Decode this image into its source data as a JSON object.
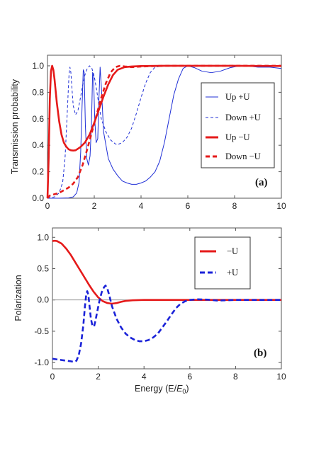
{
  "chart_data": [
    {
      "type": "line",
      "panel_label": "(a)",
      "ylabel": "Transmission probability",
      "xlabel": "",
      "xlim": [
        0,
        10
      ],
      "ylim": [
        0,
        1.08
      ],
      "xticks": [
        0,
        2,
        4,
        6,
        8,
        10
      ],
      "yticks": [
        0.0,
        0.2,
        0.4,
        0.6,
        0.8,
        1.0
      ],
      "ytick_labels": [
        "0.0",
        "0.2",
        "0.4",
        "0.6",
        "0.8",
        "1.0"
      ],
      "grid": false,
      "legend_position": "right",
      "series": [
        {
          "name": "Up +U",
          "color": "#1f2fd6",
          "style": "solid",
          "weight": "thin",
          "points": [
            [
              0,
              0
            ],
            [
              0.5,
              0
            ],
            [
              0.9,
              0.002
            ],
            [
              1.1,
              0.01
            ],
            [
              1.25,
              0.04
            ],
            [
              1.35,
              0.12
            ],
            [
              1.42,
              0.35
            ],
            [
              1.48,
              0.7
            ],
            [
              1.53,
              0.97
            ],
            [
              1.57,
              0.95
            ],
            [
              1.62,
              0.55
            ],
            [
              1.68,
              0.3
            ],
            [
              1.75,
              0.25
            ],
            [
              1.82,
              0.32
            ],
            [
              1.88,
              0.55
            ],
            [
              1.93,
              0.95
            ],
            [
              1.97,
              0.92
            ],
            [
              2.02,
              0.6
            ],
            [
              2.08,
              0.42
            ],
            [
              2.15,
              0.45
            ],
            [
              2.2,
              0.75
            ],
            [
              2.25,
              0.99
            ],
            [
              2.3,
              0.85
            ],
            [
              2.4,
              0.5
            ],
            [
              2.6,
              0.3
            ],
            [
              2.8,
              0.22
            ],
            [
              3.0,
              0.17
            ],
            [
              3.2,
              0.13
            ],
            [
              3.4,
              0.115
            ],
            [
              3.6,
              0.105
            ],
            [
              3.8,
              0.105
            ],
            [
              4.0,
              0.115
            ],
            [
              4.2,
              0.13
            ],
            [
              4.4,
              0.16
            ],
            [
              4.6,
              0.2
            ],
            [
              4.8,
              0.28
            ],
            [
              5.0,
              0.42
            ],
            [
              5.2,
              0.6
            ],
            [
              5.4,
              0.78
            ],
            [
              5.6,
              0.9
            ],
            [
              5.8,
              0.98
            ],
            [
              6.0,
              1.0
            ],
            [
              6.3,
              0.985
            ],
            [
              6.6,
              0.96
            ],
            [
              7.0,
              0.948
            ],
            [
              7.4,
              0.96
            ],
            [
              7.8,
              0.985
            ],
            [
              8.2,
              1.0
            ],
            [
              8.6,
              0.998
            ],
            [
              9.0,
              0.99
            ],
            [
              9.5,
              0.99
            ],
            [
              10,
              0.98
            ]
          ]
        },
        {
          "name": "Down +U",
          "color": "#1f2fd6",
          "style": "dashed",
          "weight": "thin",
          "points": [
            [
              0,
              0
            ],
            [
              0.3,
              0.01
            ],
            [
              0.5,
              0.04
            ],
            [
              0.65,
              0.12
            ],
            [
              0.75,
              0.3
            ],
            [
              0.82,
              0.55
            ],
            [
              0.88,
              0.78
            ],
            [
              0.92,
              0.93
            ],
            [
              0.96,
              0.99
            ],
            [
              1.0,
              0.95
            ],
            [
              1.05,
              0.82
            ],
            [
              1.1,
              0.7
            ],
            [
              1.2,
              0.63
            ],
            [
              1.3,
              0.66
            ],
            [
              1.4,
              0.75
            ],
            [
              1.5,
              0.85
            ],
            [
              1.6,
              0.93
            ],
            [
              1.7,
              0.98
            ],
            [
              1.8,
              1.0
            ],
            [
              1.9,
              0.98
            ],
            [
              2.0,
              0.92
            ],
            [
              2.1,
              0.82
            ],
            [
              2.2,
              0.7
            ],
            [
              2.3,
              0.6
            ],
            [
              2.5,
              0.5
            ],
            [
              2.7,
              0.44
            ],
            [
              2.9,
              0.41
            ],
            [
              3.0,
              0.405
            ],
            [
              3.2,
              0.42
            ],
            [
              3.4,
              0.46
            ],
            [
              3.6,
              0.53
            ],
            [
              3.8,
              0.64
            ],
            [
              4.0,
              0.76
            ],
            [
              4.2,
              0.87
            ],
            [
              4.4,
              0.95
            ],
            [
              4.6,
              0.99
            ],
            [
              5.0,
              1.0
            ],
            [
              6.0,
              0.998
            ],
            [
              7.0,
              0.999
            ],
            [
              8.0,
              0.998
            ],
            [
              9.0,
              0.999
            ],
            [
              10,
              0.998
            ]
          ]
        },
        {
          "name": "Up −U",
          "color": "#e51a1a",
          "style": "solid",
          "weight": "thick",
          "points": [
            [
              0,
              0
            ],
            [
              0.05,
              0.3
            ],
            [
              0.1,
              0.75
            ],
            [
              0.15,
              0.96
            ],
            [
              0.2,
              1.0
            ],
            [
              0.25,
              0.97
            ],
            [
              0.3,
              0.9
            ],
            [
              0.4,
              0.72
            ],
            [
              0.5,
              0.58
            ],
            [
              0.6,
              0.48
            ],
            [
              0.7,
              0.42
            ],
            [
              0.8,
              0.39
            ],
            [
              0.9,
              0.37
            ],
            [
              1.0,
              0.362
            ],
            [
              1.1,
              0.36
            ],
            [
              1.2,
              0.362
            ],
            [
              1.4,
              0.385
            ],
            [
              1.6,
              0.42
            ],
            [
              1.8,
              0.48
            ],
            [
              2.0,
              0.57
            ],
            [
              2.2,
              0.67
            ],
            [
              2.4,
              0.77
            ],
            [
              2.6,
              0.86
            ],
            [
              2.8,
              0.93
            ],
            [
              3.0,
              0.97
            ],
            [
              3.3,
              0.99
            ],
            [
              3.6,
              0.995
            ],
            [
              4.0,
              0.998
            ],
            [
              5.0,
              1.0
            ],
            [
              6.0,
              1.0
            ],
            [
              7.0,
              1.0
            ],
            [
              8.0,
              1.0
            ],
            [
              9.0,
              0.999
            ],
            [
              10,
              0.998
            ]
          ]
        },
        {
          "name": "Down −U",
          "color": "#e51a1a",
          "style": "dashed",
          "weight": "thick",
          "points": [
            [
              0,
              0
            ],
            [
              0.1,
              0.02
            ],
            [
              0.3,
              0.03
            ],
            [
              0.5,
              0.04
            ],
            [
              0.7,
              0.06
            ],
            [
              0.9,
              0.08
            ],
            [
              1.1,
              0.11
            ],
            [
              1.3,
              0.16
            ],
            [
              1.5,
              0.25
            ],
            [
              1.7,
              0.37
            ],
            [
              1.9,
              0.5
            ],
            [
              2.1,
              0.63
            ],
            [
              2.3,
              0.76
            ],
            [
              2.5,
              0.87
            ],
            [
              2.7,
              0.95
            ],
            [
              2.9,
              0.99
            ],
            [
              3.1,
              1.0
            ],
            [
              3.3,
              0.995
            ],
            [
              3.6,
              0.99
            ],
            [
              4.0,
              0.995
            ],
            [
              5.0,
              1.0
            ],
            [
              6.0,
              1.0
            ],
            [
              7.0,
              1.0
            ],
            [
              8.0,
              1.0
            ],
            [
              9.0,
              1.0
            ],
            [
              10,
              1.0
            ]
          ]
        }
      ]
    },
    {
      "type": "line",
      "panel_label": "(b)",
      "ylabel": "Polarization",
      "xlabel": "Energy (E/",
      "xlabel_sub": "E",
      "xlabel_subscript": "0",
      "xlabel_end": ")",
      "xlim": [
        0,
        10
      ],
      "ylim": [
        -1.1,
        1.15
      ],
      "xticks": [
        0,
        2,
        4,
        6,
        8,
        10
      ],
      "yticks": [
        -1.0,
        -0.5,
        0.0,
        0.5,
        1.0
      ],
      "ytick_labels": [
        "-1.0",
        "-0.5",
        "0.0",
        "0.5",
        "1.0"
      ],
      "grid": false,
      "zero_line": true,
      "legend_position": "right",
      "series": [
        {
          "name": "−U",
          "color": "#e51a1a",
          "style": "solid",
          "weight": "thick",
          "points": [
            [
              0,
              0.94
            ],
            [
              0.1,
              0.945
            ],
            [
              0.2,
              0.94
            ],
            [
              0.4,
              0.9
            ],
            [
              0.6,
              0.82
            ],
            [
              0.8,
              0.72
            ],
            [
              1.0,
              0.6
            ],
            [
              1.2,
              0.48
            ],
            [
              1.4,
              0.36
            ],
            [
              1.6,
              0.24
            ],
            [
              1.8,
              0.13
            ],
            [
              2.0,
              0.04
            ],
            [
              2.2,
              -0.02
            ],
            [
              2.4,
              -0.05
            ],
            [
              2.6,
              -0.06
            ],
            [
              2.8,
              -0.05
            ],
            [
              3.0,
              -0.03
            ],
            [
              3.2,
              -0.015
            ],
            [
              3.5,
              -0.005
            ],
            [
              4.0,
              0.0
            ],
            [
              5.0,
              0.0
            ],
            [
              6.0,
              0.0
            ],
            [
              7.0,
              0.0
            ],
            [
              8.0,
              0.0
            ],
            [
              9.0,
              0.0
            ],
            [
              10,
              0.0
            ]
          ]
        },
        {
          "name": "+U",
          "color": "#1a22d8",
          "style": "dashed",
          "weight": "thick",
          "points": [
            [
              0,
              -0.94
            ],
            [
              0.2,
              -0.95
            ],
            [
              0.4,
              -0.96
            ],
            [
              0.6,
              -0.97
            ],
            [
              0.8,
              -0.98
            ],
            [
              0.95,
              -0.99
            ],
            [
              1.05,
              -0.97
            ],
            [
              1.15,
              -0.88
            ],
            [
              1.25,
              -0.7
            ],
            [
              1.35,
              -0.4
            ],
            [
              1.42,
              -0.1
            ],
            [
              1.48,
              0.1
            ],
            [
              1.52,
              0.14
            ],
            [
              1.57,
              0.08
            ],
            [
              1.62,
              -0.1
            ],
            [
              1.68,
              -0.3
            ],
            [
              1.75,
              -0.42
            ],
            [
              1.82,
              -0.42
            ],
            [
              1.88,
              -0.33
            ],
            [
              1.95,
              -0.2
            ],
            [
              2.05,
              -0.02
            ],
            [
              2.15,
              0.12
            ],
            [
              2.25,
              0.2
            ],
            [
              2.32,
              0.23
            ],
            [
              2.4,
              0.18
            ],
            [
              2.5,
              0.05
            ],
            [
              2.6,
              -0.1
            ],
            [
              2.8,
              -0.3
            ],
            [
              3.0,
              -0.44
            ],
            [
              3.2,
              -0.54
            ],
            [
              3.4,
              -0.6
            ],
            [
              3.6,
              -0.64
            ],
            [
              3.8,
              -0.66
            ],
            [
              4.0,
              -0.66
            ],
            [
              4.2,
              -0.64
            ],
            [
              4.4,
              -0.6
            ],
            [
              4.6,
              -0.54
            ],
            [
              4.8,
              -0.44
            ],
            [
              5.0,
              -0.34
            ],
            [
              5.2,
              -0.23
            ],
            [
              5.4,
              -0.13
            ],
            [
              5.6,
              -0.06
            ],
            [
              5.8,
              -0.02
            ],
            [
              6.0,
              0.0
            ],
            [
              6.3,
              0.01
            ],
            [
              6.8,
              0.005
            ],
            [
              7.2,
              -0.01
            ],
            [
              7.6,
              -0.005
            ],
            [
              8.0,
              0.0
            ],
            [
              9.0,
              0.0
            ],
            [
              10,
              0.0
            ]
          ]
        }
      ]
    }
  ]
}
